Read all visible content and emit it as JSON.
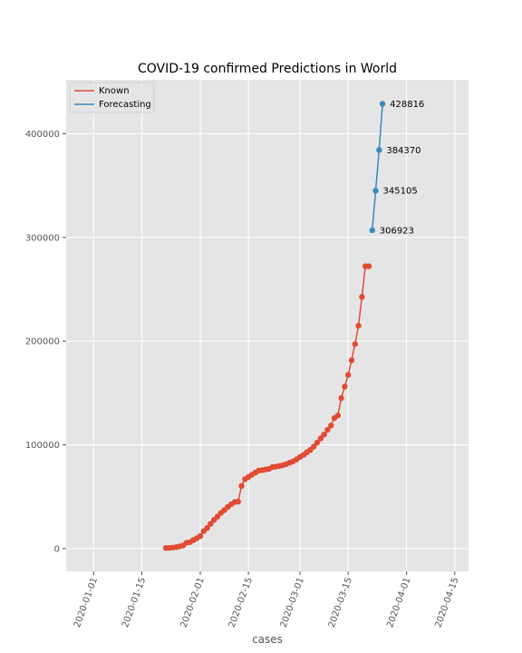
{
  "chart_data": {
    "type": "line",
    "title": "COVID-19 confirmed Predictions in World",
    "xlabel": "cases",
    "ylabel": "",
    "xlim": [
      "2019-12-24",
      "2020-04-19"
    ],
    "ylim": [
      -22000,
      452000
    ],
    "grid": true,
    "legend_position": "top-left",
    "x_ticks": [
      "2020-01-01",
      "2020-01-15",
      "2020-02-01",
      "2020-02-15",
      "2020-03-01",
      "2020-03-15",
      "2020-04-01",
      "2020-04-15"
    ],
    "y_ticks": [
      0,
      100000,
      200000,
      300000,
      400000
    ],
    "y_tick_labels": [
      "0",
      "100000",
      "200000",
      "300000",
      "400000"
    ],
    "series": [
      {
        "name": "Known",
        "color": "#E24A33",
        "x": [
          "2020-01-22",
          "2020-01-23",
          "2020-01-24",
          "2020-01-25",
          "2020-01-26",
          "2020-01-27",
          "2020-01-28",
          "2020-01-29",
          "2020-01-30",
          "2020-01-31",
          "2020-02-01",
          "2020-02-02",
          "2020-02-03",
          "2020-02-04",
          "2020-02-05",
          "2020-02-06",
          "2020-02-07",
          "2020-02-08",
          "2020-02-09",
          "2020-02-10",
          "2020-02-11",
          "2020-02-12",
          "2020-02-13",
          "2020-02-14",
          "2020-02-15",
          "2020-02-16",
          "2020-02-17",
          "2020-02-18",
          "2020-02-19",
          "2020-02-20",
          "2020-02-21",
          "2020-02-22",
          "2020-02-23",
          "2020-02-24",
          "2020-02-25",
          "2020-02-26",
          "2020-02-27",
          "2020-02-28",
          "2020-02-29",
          "2020-03-01",
          "2020-03-02",
          "2020-03-03",
          "2020-03-04",
          "2020-03-05",
          "2020-03-06",
          "2020-03-07",
          "2020-03-08",
          "2020-03-09",
          "2020-03-10",
          "2020-03-11",
          "2020-03-12",
          "2020-03-13",
          "2020-03-14",
          "2020-03-15",
          "2020-03-16",
          "2020-03-17",
          "2020-03-18",
          "2020-03-19",
          "2020-03-20",
          "2020-03-21"
        ],
        "values": [
          555,
          654,
          941,
          1434,
          2118,
          2927,
          5578,
          6167,
          8235,
          9927,
          12038,
          16787,
          19881,
          23892,
          27636,
          30818,
          34392,
          37121,
          40151,
          42763,
          44803,
          45222,
          60370,
          66887,
          69032,
          71226,
          73260,
          75138,
          75641,
          76199,
          76843,
          78599,
          78985,
          79570,
          80415,
          81397,
          82756,
          84124,
          86013,
          88371,
          90309,
          92844,
          95124,
          98334,
          102242,
          106108,
          109991,
          114458,
          118578,
          125865,
          128343,
          145193,
          156097,
          167449,
          181546,
          197168,
          214915,
          242713,
          272167,
          272167
        ]
      },
      {
        "name": "Forecasting",
        "color": "#348ABD",
        "x": [
          "2020-03-22",
          "2020-03-23",
          "2020-03-24",
          "2020-03-25"
        ],
        "values": [
          306923,
          345105,
          384370,
          428816
        ],
        "labels": [
          "306923",
          "345105",
          "384370",
          "428816"
        ]
      }
    ]
  }
}
